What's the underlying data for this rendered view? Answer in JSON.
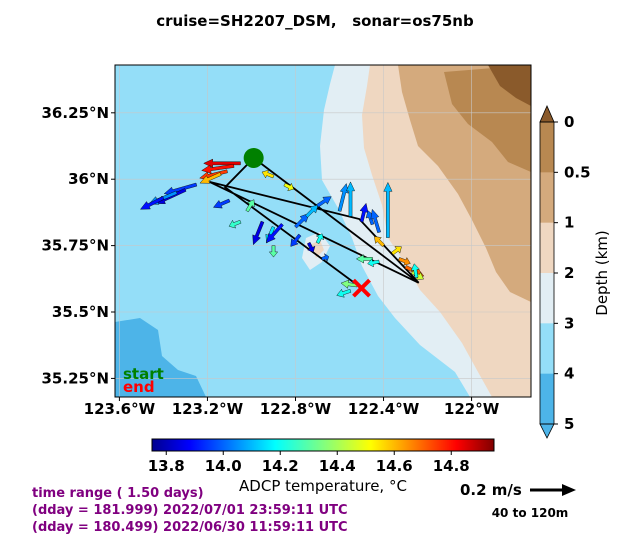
{
  "title": "cruise=SH2207_DSM,   sonar=os75nb",
  "colors": {
    "sea_deep": "#4db4e8",
    "sea": "#94def8",
    "shelf": "#e2eef4",
    "land_1": "#efd7c1",
    "land_2": "#d4aa7d",
    "land_3": "#b88851",
    "land_4": "#8a5a2b",
    "track": "#000000",
    "start_marker": "#008000",
    "end_marker": "#ff0000",
    "info_text": "#800080"
  },
  "chart_data": [
    {
      "type": "map-quiver",
      "xlabel": "",
      "ylabel": "",
      "x_ticks": [
        "123.6°W",
        "123.2°W",
        "122.8°W",
        "122.4°W",
        "122°W"
      ],
      "x_tick_values": [
        -123.6,
        -123.2,
        -122.8,
        -122.4,
        -122.0
      ],
      "y_ticks": [
        "35.25°N",
        "35.5°N",
        "35.75°N",
        "36°N",
        "36.25°N"
      ],
      "y_tick_values": [
        35.25,
        35.5,
        35.75,
        36.0,
        36.25
      ],
      "xlim": [
        -123.62,
        -121.73
      ],
      "ylim": [
        35.18,
        36.43
      ],
      "grid": true,
      "legend": [
        {
          "label": "start",
          "color": "#008000"
        },
        {
          "label": "end",
          "color": "#ff0000"
        }
      ],
      "start": {
        "lon": -122.99,
        "lat": 36.08
      },
      "end": {
        "lon": -122.5,
        "lat": 35.59
      },
      "track": [
        {
          "lon": -122.99,
          "lat": 36.08
        },
        {
          "lon": -122.24,
          "lat": 35.61
        },
        {
          "lon": -123.19,
          "lat": 35.99
        },
        {
          "lon": -122.51,
          "lat": 35.85
        },
        {
          "lon": -122.24,
          "lat": 35.61
        },
        {
          "lon": -122.99,
          "lat": 36.08
        },
        {
          "lon": -123.12,
          "lat": 35.97
        },
        {
          "lon": -122.5,
          "lat": 35.59
        }
      ],
      "vectors": [
        {
          "lon": -123.05,
          "lat": 36.06,
          "u": -0.16,
          "v": 0.0,
          "temp": 14.85
        },
        {
          "lon": -123.08,
          "lat": 36.05,
          "u": -0.14,
          "v": -0.02,
          "temp": 14.8
        },
        {
          "lon": -123.11,
          "lat": 36.03,
          "u": -0.12,
          "v": -0.03,
          "temp": 14.75
        },
        {
          "lon": -123.14,
          "lat": 36.02,
          "u": -0.09,
          "v": -0.04,
          "temp": 14.6
        },
        {
          "lon": -122.9,
          "lat": 36.01,
          "u": -0.05,
          "v": 0.02,
          "temp": 14.55
        },
        {
          "lon": -122.85,
          "lat": 35.98,
          "u": 0.04,
          "v": -0.02,
          "temp": 14.5
        },
        {
          "lon": -123.25,
          "lat": 35.98,
          "u": -0.14,
          "v": -0.04,
          "temp": 13.95
        },
        {
          "lon": -123.3,
          "lat": 35.96,
          "u": -0.13,
          "v": -0.06,
          "temp": 13.85
        },
        {
          "lon": -123.34,
          "lat": 35.95,
          "u": -0.12,
          "v": -0.05,
          "temp": 14.05
        },
        {
          "lon": -123.4,
          "lat": 35.93,
          "u": -0.1,
          "v": -0.05,
          "temp": 13.9
        },
        {
          "lon": -123.1,
          "lat": 35.92,
          "u": -0.07,
          "v": -0.03,
          "temp": 13.95
        },
        {
          "lon": -123.02,
          "lat": 35.88,
          "u": 0.03,
          "v": 0.05,
          "temp": 14.3
        },
        {
          "lon": -123.05,
          "lat": 35.84,
          "u": -0.05,
          "v": -0.02,
          "temp": 14.25
        },
        {
          "lon": -122.95,
          "lat": 35.84,
          "u": -0.04,
          "v": -0.1,
          "temp": 13.85
        },
        {
          "lon": -122.9,
          "lat": 35.82,
          "u": -0.03,
          "v": -0.07,
          "temp": 14.15
        },
        {
          "lon": -122.86,
          "lat": 35.83,
          "u": -0.07,
          "v": -0.08,
          "temp": 13.9
        },
        {
          "lon": -122.8,
          "lat": 35.82,
          "u": 0.06,
          "v": 0.06,
          "temp": 14.0
        },
        {
          "lon": -122.75,
          "lat": 35.86,
          "u": 0.05,
          "v": 0.05,
          "temp": 14.1
        },
        {
          "lon": -122.7,
          "lat": 35.9,
          "u": 0.06,
          "v": 0.04,
          "temp": 14.0
        },
        {
          "lon": -122.78,
          "lat": 35.79,
          "u": -0.04,
          "v": -0.05,
          "temp": 13.95
        },
        {
          "lon": -122.7,
          "lat": 35.76,
          "u": 0.02,
          "v": 0.04,
          "temp": 14.2
        },
        {
          "lon": -122.74,
          "lat": 35.76,
          "u": 0.02,
          "v": -0.04,
          "temp": 13.85
        },
        {
          "lon": -122.6,
          "lat": 35.88,
          "u": 0.03,
          "v": 0.12,
          "temp": 14.05
        },
        {
          "lon": -122.55,
          "lat": 35.86,
          "u": 0.0,
          "v": 0.15,
          "temp": 14.1
        },
        {
          "lon": -122.5,
          "lat": 35.84,
          "u": 0.02,
          "v": 0.08,
          "temp": 13.9
        },
        {
          "lon": -122.45,
          "lat": 35.83,
          "u": -0.02,
          "v": 0.06,
          "temp": 14.0
        },
        {
          "lon": -122.42,
          "lat": 35.8,
          "u": -0.03,
          "v": 0.1,
          "temp": 14.0
        },
        {
          "lon": -122.38,
          "lat": 35.78,
          "u": 0.0,
          "v": 0.24,
          "temp": 14.1
        },
        {
          "lon": -122.4,
          "lat": 35.75,
          "u": -0.04,
          "v": 0.04,
          "temp": 14.6
        },
        {
          "lon": -122.36,
          "lat": 35.72,
          "u": 0.04,
          "v": 0.03,
          "temp": 14.55
        },
        {
          "lon": -122.33,
          "lat": 35.7,
          "u": 0.05,
          "v": -0.02,
          "temp": 14.65
        },
        {
          "lon": -122.3,
          "lat": 35.67,
          "u": 0.08,
          "v": -0.04,
          "temp": 14.7
        },
        {
          "lon": -122.27,
          "lat": 35.65,
          "u": 0.05,
          "v": -0.03,
          "temp": 14.45
        },
        {
          "lon": -122.25,
          "lat": 35.63,
          "u": -0.01,
          "v": 0.06,
          "temp": 14.2
        },
        {
          "lon": -122.45,
          "lat": 35.7,
          "u": -0.07,
          "v": 0.0,
          "temp": 14.3
        },
        {
          "lon": -122.42,
          "lat": 35.69,
          "u": -0.05,
          "v": -0.01,
          "temp": 14.2
        },
        {
          "lon": -122.52,
          "lat": 35.6,
          "u": -0.07,
          "v": 0.01,
          "temp": 14.35
        },
        {
          "lon": -122.55,
          "lat": 35.58,
          "u": -0.06,
          "v": -0.02,
          "temp": 14.2
        },
        {
          "lon": -122.68,
          "lat": 35.7,
          "u": 0.03,
          "v": 0.01,
          "temp": 14.0
        },
        {
          "lon": -122.9,
          "lat": 35.75,
          "u": 0.0,
          "v": -0.05,
          "temp": 14.3
        }
      ],
      "depth_colorbar": {
        "label": "Depth (km)",
        "tick_labels": [
          "0",
          "0.5",
          "1",
          "2",
          "3",
          "4",
          "5"
        ],
        "colors": [
          "#b88851",
          "#d4aa7d",
          "#efd7c1",
          "#e2eef4",
          "#94def8",
          "#4db4e8"
        ]
      },
      "temperature_colorbar": {
        "label": "ADCP temperature, °C",
        "tick_labels": [
          "13.8",
          "14.0",
          "14.2",
          "14.4",
          "14.6",
          "14.8"
        ],
        "tick_values": [
          13.8,
          14.0,
          14.2,
          14.4,
          14.6,
          14.8
        ],
        "range": [
          13.75,
          14.95
        ]
      },
      "scale_arrow": {
        "label": "0.2 m/s",
        "speed": 0.2,
        "depth_range": "40 to 120m"
      }
    }
  ],
  "info": {
    "line1": "time range ( 1.50 days)",
    "line2": "(dday = 181.999) 2022/07/01 23:59:11 UTC",
    "line3": "(dday = 180.499) 2022/06/30 11:59:11 UTC"
  }
}
